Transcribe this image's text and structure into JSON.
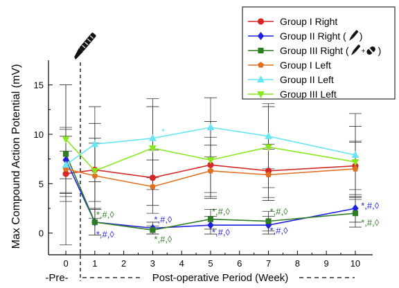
{
  "chart_data": {
    "type": "line",
    "ylabel": "Max Compound Action Potential (mV)",
    "xlabel": "Post-operative Period (Week)",
    "pre_label": "-Pre-",
    "x_ticks": [
      0,
      1,
      2,
      3,
      4,
      5,
      6,
      7,
      8,
      9,
      10
    ],
    "y_ticks": [
      0,
      5,
      10,
      15
    ],
    "xlim": [
      -0.6,
      10.6
    ],
    "ylim": [
      -2.2,
      17.5
    ],
    "grid": false,
    "legend_position": "top-right",
    "x": [
      0,
      1,
      3,
      5,
      7,
      10
    ],
    "series": [
      {
        "name": "Group I Right",
        "color": "#d62728",
        "marker": "circle",
        "values": [
          6.0,
          6.4,
          5.6,
          6.9,
          6.3,
          6.8
        ],
        "errors": [
          2.3,
          3.2,
          2.8,
          2.8,
          2.7,
          2.4
        ]
      },
      {
        "name": "Group II Right (",
        "name_suffix": ")",
        "legend_icon": "scalpel-icon",
        "color": "#1f1fe0",
        "marker": "diamond",
        "values": [
          7.4,
          1.1,
          0.5,
          0.8,
          0.8,
          2.5
        ],
        "errors": [
          3.3,
          1.3,
          0.6,
          0.9,
          0.9,
          1.4
        ]
      },
      {
        "name": "Group III Right (",
        "name_suffix": ")",
        "legend_icon": "scalpel-and-tube-icon",
        "color": "#2e7d22",
        "marker": "square",
        "values": [
          8.0,
          1.1,
          0.3,
          1.4,
          1.2,
          2.0
        ],
        "errors": [
          2.5,
          1.3,
          0.4,
          1.0,
          1.0,
          1.4
        ]
      },
      {
        "name": "Group I Left",
        "color": "#e07020",
        "marker": "pentagon",
        "values": [
          6.5,
          5.8,
          4.7,
          6.3,
          5.9,
          6.5
        ],
        "errors": [
          3.3,
          3.3,
          2.7,
          2.6,
          2.6,
          2.8
        ]
      },
      {
        "name": "Group II Left",
        "color": "#66e6f2",
        "marker": "triangle-up",
        "values": [
          6.9,
          9.0,
          9.6,
          10.7,
          9.8,
          7.9
        ],
        "errors": [
          8.1,
          3.8,
          4.0,
          3.0,
          3.3,
          4.2
        ]
      },
      {
        "name": "Group III Left",
        "color": "#88e81e",
        "marker": "triangle-down",
        "values": [
          9.5,
          6.3,
          8.6,
          7.4,
          8.7,
          7.2
        ],
        "errors": [
          5.5,
          4.8,
          4.2,
          3.9,
          4.1,
          3.6
        ]
      }
    ],
    "annotations": [
      {
        "text": "*",
        "x": 3.25,
        "y": 10.3,
        "color": "#66e6f2"
      },
      {
        "text": "*,#,◊",
        "x": 1.0,
        "y": 1.9,
        "color": "#2e7d22"
      },
      {
        "text": "*,#,◊",
        "x": 1.0,
        "y": -0.1,
        "color": "#1f1fe0"
      },
      {
        "text": "*,#,◊",
        "x": 3.0,
        "y": 1.4,
        "color": "#1f1fe0"
      },
      {
        "text": "*,#,◊",
        "x": 3.0,
        "y": -0.6,
        "color": "#2e7d22"
      },
      {
        "text": "*,#,◊",
        "x": 5.0,
        "y": 2.2,
        "color": "#2e7d22"
      },
      {
        "text": "*,#,◊",
        "x": 5.0,
        "y": 0.1,
        "color": "#1f1fe0"
      },
      {
        "text": "*,#,◊",
        "x": 7.0,
        "y": 2.2,
        "color": "#2e7d22"
      },
      {
        "text": "*,#,◊",
        "x": 7.0,
        "y": 0.3,
        "color": "#1f1fe0"
      },
      {
        "text": "*,#,◊",
        "x": 10.15,
        "y": 2.8,
        "color": "#1f1fe0"
      },
      {
        "text": "*,#,◊",
        "x": 10.15,
        "y": 1.1,
        "color": "#2e7d22"
      }
    ]
  }
}
